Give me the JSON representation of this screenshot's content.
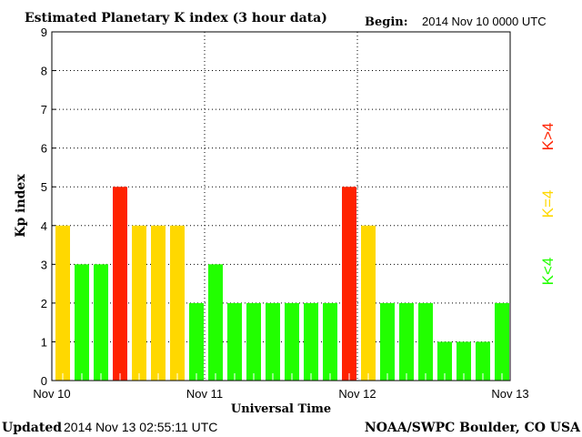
{
  "chart_data": {
    "type": "bar",
    "title": "Estimated Planetary K index (3 hour data)",
    "begin_label": "Begin:",
    "begin_value": "2014 Nov 10 0000 UTC",
    "xlabel": "Universal Time",
    "ylabel": "Kp index",
    "ylim": [
      0,
      9
    ],
    "yticks": [
      "0",
      "1",
      "2",
      "3",
      "4",
      "5",
      "6",
      "7",
      "8",
      "9"
    ],
    "xticks": [
      "Nov 10",
      "Nov 11",
      "Nov 12",
      "Nov 13"
    ],
    "grid": true,
    "bar_interval_hours": 3,
    "values": [
      4,
      3,
      3,
      5,
      4,
      4,
      4,
      2,
      3,
      2,
      2,
      2,
      2,
      2,
      2,
      5,
      4,
      2,
      2,
      2,
      1,
      1,
      1,
      2
    ],
    "legend": [
      {
        "label": "K<4",
        "color": "#22ff00"
      },
      {
        "label": "K=4",
        "color": "#ffd800"
      },
      {
        "label": "K>4",
        "color": "#ff2200"
      }
    ],
    "colors": {
      "low": "#22ff00",
      "mid": "#ffd800",
      "high": "#ff2200"
    }
  },
  "footer": {
    "updated_label": "Updated",
    "updated_value": "2014 Nov 13 02:55:11 UTC",
    "source": "NOAA/SWPC Boulder, CO USA"
  }
}
